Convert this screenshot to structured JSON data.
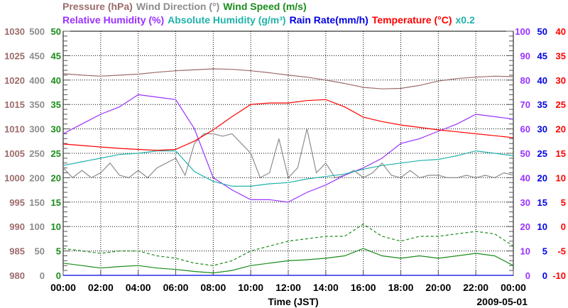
{
  "chart_data": {
    "type": "line",
    "legend_line1": [
      {
        "label": "Pressure (hPa)",
        "color": "#9c6b6b"
      },
      {
        "label": "Wind Direction (°)",
        "color": "#8c8c8c"
      },
      {
        "label": "Wind Speed (m/s)",
        "color": "#1a8c1a"
      }
    ],
    "legend_line2": [
      {
        "label": "Relative Humidity (%)",
        "color": "#9b30ff"
      },
      {
        "label": "Absolute Humidity (g/m³)",
        "color": "#20b2aa"
      },
      {
        "label": "Rain Rate(mm/h)",
        "color": "#0000e6"
      },
      {
        "label": "Temperature (°C)",
        "color": "#ff0000"
      },
      {
        "label": "x0.2",
        "color": "#20b2aa"
      }
    ],
    "xlabel": "Time (JST)",
    "date": "2009-05-01",
    "x_ticks": [
      "00:00",
      "02:00",
      "04:00",
      "06:00",
      "08:00",
      "10:00",
      "12:00",
      "14:00",
      "16:00",
      "18:00",
      "20:00",
      "22:00",
      "00:00"
    ],
    "xlim_hours": [
      0,
      24
    ],
    "grid": true,
    "axes": {
      "pressure": {
        "ticks": [
          "980",
          "985",
          "990",
          "995",
          "1000",
          "1005",
          "1010",
          "1015",
          "1020",
          "1025",
          "1030"
        ],
        "range": [
          980,
          1030
        ],
        "color": "#9c6b6b"
      },
      "wind_direction": {
        "ticks": [
          "0",
          "50",
          "100",
          "150",
          "200",
          "250",
          "300",
          "350",
          "400",
          "450",
          "500"
        ],
        "range": [
          0,
          500
        ],
        "color": "#8c8c8c"
      },
      "wind_speed": {
        "ticks": [
          "0",
          "5",
          "10",
          "15",
          "20",
          "25",
          "30",
          "35",
          "40",
          "45",
          "50"
        ],
        "range": [
          0,
          50
        ],
        "color": "#1a8c1a"
      },
      "relative_humidity": {
        "ticks": [
          "0",
          "10",
          "20",
          "30",
          "40",
          "50",
          "60",
          "70",
          "80",
          "90",
          "100"
        ],
        "range": [
          0,
          100
        ],
        "color": "#9b30ff"
      },
      "rain_rate": {
        "ticks": [
          "0",
          "5",
          "10",
          "15",
          "20",
          "25",
          "30",
          "35",
          "40",
          "45",
          "50"
        ],
        "range": [
          0,
          50
        ],
        "color": "#0000e6"
      },
      "temperature": {
        "ticks": [
          "-10",
          "-5",
          "0",
          "5",
          "10",
          "15",
          "20",
          "25",
          "30",
          "35",
          "40"
        ],
        "range": [
          -10,
          40
        ],
        "color": "#ff0000"
      }
    },
    "series": [
      {
        "name": "Pressure",
        "axis": "pressure",
        "color": "#9c6b6b",
        "step_hours": 1,
        "values": [
          1021.3,
          1021.0,
          1020.8,
          1021.0,
          1021.2,
          1021.6,
          1021.9,
          1022.1,
          1022.3,
          1022.2,
          1021.9,
          1021.5,
          1021.0,
          1020.6,
          1020.0,
          1019.3,
          1018.5,
          1018.2,
          1018.3,
          1018.9,
          1019.8,
          1020.3,
          1020.6,
          1020.8,
          1020.7
        ]
      },
      {
        "name": "Wind Direction",
        "axis": "wind_direction",
        "color": "#8c8c8c",
        "step_hours": 0.5,
        "values": [
          220,
          200,
          215,
          200,
          210,
          230,
          205,
          200,
          215,
          200,
          220,
          230,
          240,
          205,
          270,
          290,
          290,
          285,
          290,
          270,
          250,
          200,
          210,
          280,
          200,
          220,
          300,
          210,
          230,
          200,
          205,
          215,
          200,
          210,
          230,
          205,
          200,
          215,
          200,
          205,
          205,
          200,
          200,
          205,
          200,
          205,
          200,
          210,
          205
        ]
      },
      {
        "name": "Relative Humidity",
        "axis": "relative_humidity",
        "color": "#9b30ff",
        "step_hours": 1,
        "values": [
          58,
          62,
          66,
          69,
          74,
          73,
          72,
          60,
          40,
          35,
          31,
          31,
          30,
          34,
          37,
          41,
          44,
          48,
          54,
          56,
          59,
          62,
          66,
          65,
          64
        ]
      },
      {
        "name": "Absolute Humidity",
        "axis": "relative_humidity",
        "scale": 5,
        "color": "#20b2aa",
        "step_hours": 1,
        "values": [
          9.0,
          9.3,
          9.6,
          9.9,
          10.0,
          10.2,
          10.2,
          8.5,
          7.7,
          7.3,
          7.3,
          7.5,
          7.6,
          7.9,
          8.1,
          8.3,
          8.7,
          9.0,
          9.2,
          9.4,
          9.5,
          9.8,
          10.2,
          10.0,
          9.8
        ]
      },
      {
        "name": "Temperature",
        "axis": "temperature",
        "color": "#ff0000",
        "step_hours": 1,
        "values": [
          16.9,
          16.6,
          16.3,
          16.0,
          15.8,
          15.6,
          15.8,
          17.5,
          19.8,
          22.5,
          25.0,
          25.3,
          25.3,
          25.8,
          26.0,
          24.5,
          22.4,
          21.5,
          20.8,
          20.3,
          19.8,
          19.4,
          19.0,
          18.6,
          18.2
        ]
      },
      {
        "name": "Wind Speed (mean)",
        "axis": "wind_speed",
        "color": "#1a8c1a",
        "step_hours": 1,
        "values": [
          2.5,
          2.0,
          1.5,
          1.8,
          2.0,
          1.5,
          1.2,
          0.8,
          0.5,
          1.0,
          2.0,
          2.5,
          3.0,
          3.2,
          3.5,
          4.0,
          5.5,
          4.0,
          3.5,
          4.0,
          3.5,
          4.0,
          4.5,
          4.0,
          2.0
        ]
      },
      {
        "name": "Wind Speed (gust)",
        "axis": "wind_speed",
        "color": "#1a8c1a",
        "dashed": true,
        "step_hours": 1,
        "values": [
          5.5,
          5.0,
          4.5,
          5.0,
          5.0,
          4.0,
          3.5,
          2.5,
          2.0,
          3.0,
          5.0,
          6.0,
          7.0,
          7.5,
          8.0,
          8.0,
          10.5,
          8.0,
          7.0,
          8.0,
          8.0,
          8.5,
          9.0,
          8.5,
          6.0
        ]
      },
      {
        "name": "Rain Rate",
        "axis": "rain_rate",
        "color": "#0000e6",
        "step_hours": 1,
        "values": [
          0,
          0,
          0,
          0,
          0,
          0,
          0,
          0,
          0,
          0,
          0,
          0,
          0,
          0,
          0,
          0,
          0,
          0,
          0,
          0,
          0,
          0,
          0,
          0,
          0
        ]
      }
    ]
  }
}
